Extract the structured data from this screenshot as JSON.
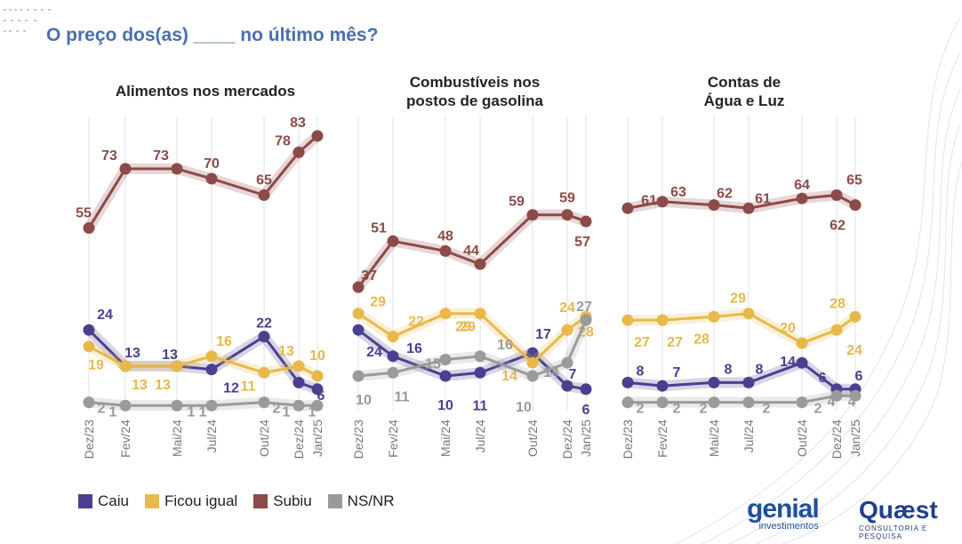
{
  "title": "O preço dos(as) ____ no último mês?",
  "colors": {
    "Caiu": "#4b3f8f",
    "Ficou igual": "#e8b84a",
    "Subiu": "#8c4a48",
    "NS/NR": "#9a9a9a"
  },
  "legend": [
    {
      "name": "Caiu",
      "color": "#4b3f8f"
    },
    {
      "name": "Ficou igual",
      "color": "#e8b84a"
    },
    {
      "name": "Subiu",
      "color": "#8c4a48"
    },
    {
      "name": "NS/NR",
      "color": "#9a9a9a"
    }
  ],
  "logos": {
    "genial_main": "genial",
    "genial_sub": "investimentos",
    "quaest_main": "Quæst",
    "quaest_sub": "CONSULTORIA E PESQUISA"
  },
  "chart_data": [
    {
      "type": "line",
      "title": [
        "Alimentos nos mercados"
      ],
      "categories": [
        "Dez/23",
        "Fev/24",
        "Mai/24",
        "Jul/24",
        "Out/24",
        "Dez/24",
        "Jan/25"
      ],
      "series": [
        {
          "name": "Subiu",
          "values": [
            55,
            73,
            73,
            70,
            65,
            78,
            83
          ]
        },
        {
          "name": "Caiu",
          "values": [
            24,
            13,
            13,
            12,
            22,
            8,
            6
          ]
        },
        {
          "name": "Ficou igual",
          "values": [
            19,
            13,
            13,
            16,
            11,
            13,
            10
          ]
        },
        {
          "name": "NS/NR",
          "values": [
            2,
            1,
            1,
            1,
            2,
            1,
            1
          ]
        }
      ],
      "ylim": [
        0,
        100
      ]
    },
    {
      "type": "line",
      "title": [
        "Combustíveis nos",
        "postos de gasolina"
      ],
      "categories": [
        "Dez/23",
        "Fev/24",
        "Mai/24",
        "Jul/24",
        "Out/24",
        "Dez/24",
        "Jan/25"
      ],
      "series": [
        {
          "name": "Subiu",
          "values": [
            37,
            51,
            48,
            44,
            59,
            59,
            57
          ]
        },
        {
          "name": "Caiu",
          "values": [
            24,
            16,
            10,
            11,
            17,
            7,
            6
          ]
        },
        {
          "name": "Ficou igual",
          "values": [
            29,
            22,
            29,
            29,
            14,
            24,
            28
          ]
        },
        {
          "name": "NS/NR",
          "values": [
            10,
            11,
            15,
            16,
            10,
            14,
            27
          ]
        }
      ],
      "ylim": [
        0,
        100
      ]
    },
    {
      "type": "line",
      "title": [
        "Contas de",
        "Água e Luz"
      ],
      "categories": [
        "Dez/23",
        "Fev/24",
        "Mai/24",
        "Jul/24",
        "Out/24",
        "Dez/24",
        "Jan/25"
      ],
      "series": [
        {
          "name": "Subiu",
          "values": [
            61,
            63,
            62,
            61,
            64,
            65,
            62
          ]
        },
        {
          "name": "Ficou igual",
          "values": [
            27,
            27,
            28,
            29,
            20,
            24,
            28
          ]
        },
        {
          "name": "Caiu",
          "values": [
            8,
            7,
            8,
            8,
            14,
            6,
            6
          ]
        },
        {
          "name": "NS/NR",
          "values": [
            2,
            2,
            2,
            2,
            2,
            4,
            4
          ]
        }
      ],
      "ylim": [
        0,
        100
      ]
    }
  ]
}
